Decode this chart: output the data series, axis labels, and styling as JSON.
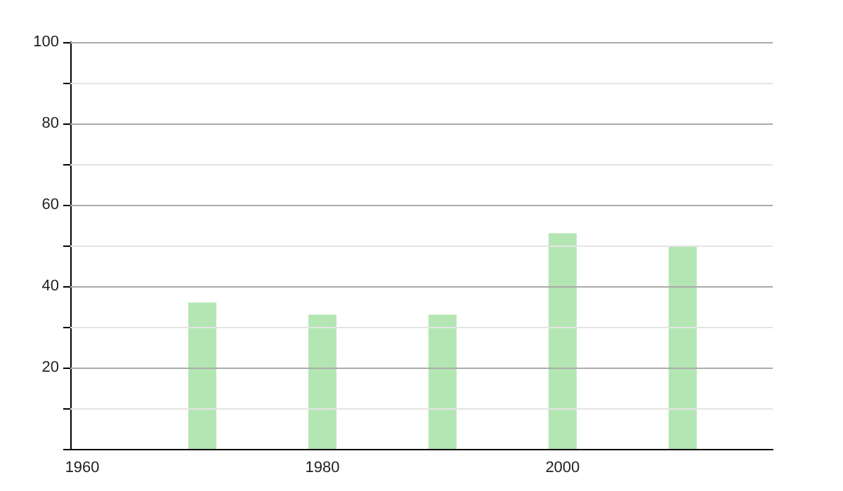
{
  "chart_data": {
    "type": "bar",
    "x": [
      1970,
      1980,
      1990,
      2000,
      2010
    ],
    "values": [
      36,
      33,
      33,
      53,
      50
    ],
    "color": "#b3e6b3",
    "xlim": [
      1959,
      2017.5
    ],
    "xticks": [
      1960,
      1980,
      2000
    ],
    "ylim": [
      0,
      100
    ],
    "yticks": [
      {
        "value": 0,
        "label": null
      },
      {
        "value": 10,
        "label": null
      },
      20,
      {
        "value": 30,
        "label": null
      },
      40,
      {
        "value": 50,
        "label": null
      },
      60,
      {
        "value": 70,
        "label": null
      },
      80,
      {
        "value": 90,
        "label": null
      },
      100
    ],
    "grid": "y"
  }
}
